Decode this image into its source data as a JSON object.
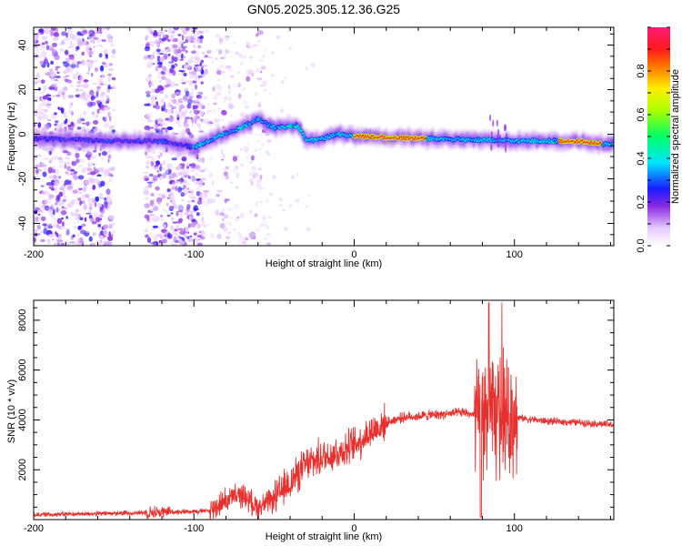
{
  "chart_data": [
    {
      "type": "heatmap",
      "title": "GN05.2025.305.12.36.G25",
      "xlabel": "Height of straight line (km)",
      "ylabel": "Frequency (Hz)",
      "xlim": [
        -200,
        162
      ],
      "ylim": [
        -50,
        48
      ],
      "xticks": [
        "-200",
        "-100",
        "0",
        "100"
      ],
      "yticks": [
        "40",
        "20",
        "0",
        "-20",
        "-40"
      ],
      "xtick_values": [
        -200,
        -100,
        0,
        100
      ],
      "ytick_values": [
        40,
        20,
        0,
        -20,
        -40
      ],
      "colorbar": {
        "label": "Normalized spectral amplitude",
        "ticks": [
          "0.0",
          "0.2",
          "0.4",
          "0.6",
          "0.8"
        ],
        "tick_values": [
          0,
          0.2,
          0.4,
          0.6,
          0.8
        ],
        "range": [
          0,
          1
        ]
      },
      "ridge": [
        {
          "x": -200,
          "f": -2
        },
        {
          "x": -150,
          "f": -3
        },
        {
          "x": -120,
          "f": -3
        },
        {
          "x": -100,
          "f": -6
        },
        {
          "x": -85,
          "f": -1
        },
        {
          "x": -70,
          "f": 3
        },
        {
          "x": -60,
          "f": 7
        },
        {
          "x": -50,
          "f": 3
        },
        {
          "x": -35,
          "f": 4
        },
        {
          "x": -30,
          "f": -3
        },
        {
          "x": -20,
          "f": -2
        },
        {
          "x": -10,
          "f": 0
        },
        {
          "x": 0,
          "f": -1
        },
        {
          "x": 50,
          "f": -2
        },
        {
          "x": 100,
          "f": -3
        },
        {
          "x": 140,
          "f": -3
        },
        {
          "x": 162,
          "f": -5
        }
      ],
      "peak_region": [
        {
          "x_start": 0,
          "x_end": 45,
          "f": -1.5,
          "amplitude": 0.95
        },
        {
          "x_start": 128,
          "x_end": 155,
          "f": -3.5,
          "amplitude": 0.95
        }
      ]
    },
    {
      "type": "line",
      "xlabel": "Height of straight line (km)",
      "ylabel": "SNR (10 * v/v)",
      "xlim": [
        -200,
        162
      ],
      "ylim": [
        0,
        8800
      ],
      "xticks": [
        "-200",
        "-100",
        "0",
        "100"
      ],
      "yticks": [
        "2000",
        "4000",
        "6000",
        "8000"
      ],
      "xtick_values": [
        -200,
        -100,
        0,
        100
      ],
      "ytick_values": [
        2000,
        4000,
        6000,
        8000
      ],
      "series": [
        {
          "name": "SNR",
          "color": "#e8312e",
          "envelope": [
            {
              "x": -200,
              "y": 200
            },
            {
              "x": -150,
              "y": 250
            },
            {
              "x": -120,
              "y": 300
            },
            {
              "x": -90,
              "y": 350
            },
            {
              "x": -80,
              "y": 800
            },
            {
              "x": -70,
              "y": 1000
            },
            {
              "x": -60,
              "y": 500
            },
            {
              "x": -50,
              "y": 800
            },
            {
              "x": -40,
              "y": 1500
            },
            {
              "x": -30,
              "y": 2200
            },
            {
              "x": -20,
              "y": 2500
            },
            {
              "x": -10,
              "y": 2700
            },
            {
              "x": 0,
              "y": 3000
            },
            {
              "x": 10,
              "y": 3500
            },
            {
              "x": 20,
              "y": 3900
            },
            {
              "x": 30,
              "y": 4100
            },
            {
              "x": 50,
              "y": 4200
            },
            {
              "x": 70,
              "y": 4300
            },
            {
              "x": 80,
              "y": 4000
            },
            {
              "x": 90,
              "y": 4100
            },
            {
              "x": 100,
              "y": 4100
            },
            {
              "x": 120,
              "y": 3950
            },
            {
              "x": 140,
              "y": 3900
            },
            {
              "x": 162,
              "y": 3800
            }
          ]
        }
      ]
    }
  ],
  "colors": {
    "line": "#e8312e",
    "axis": "#000000",
    "background": "#ffffff"
  }
}
